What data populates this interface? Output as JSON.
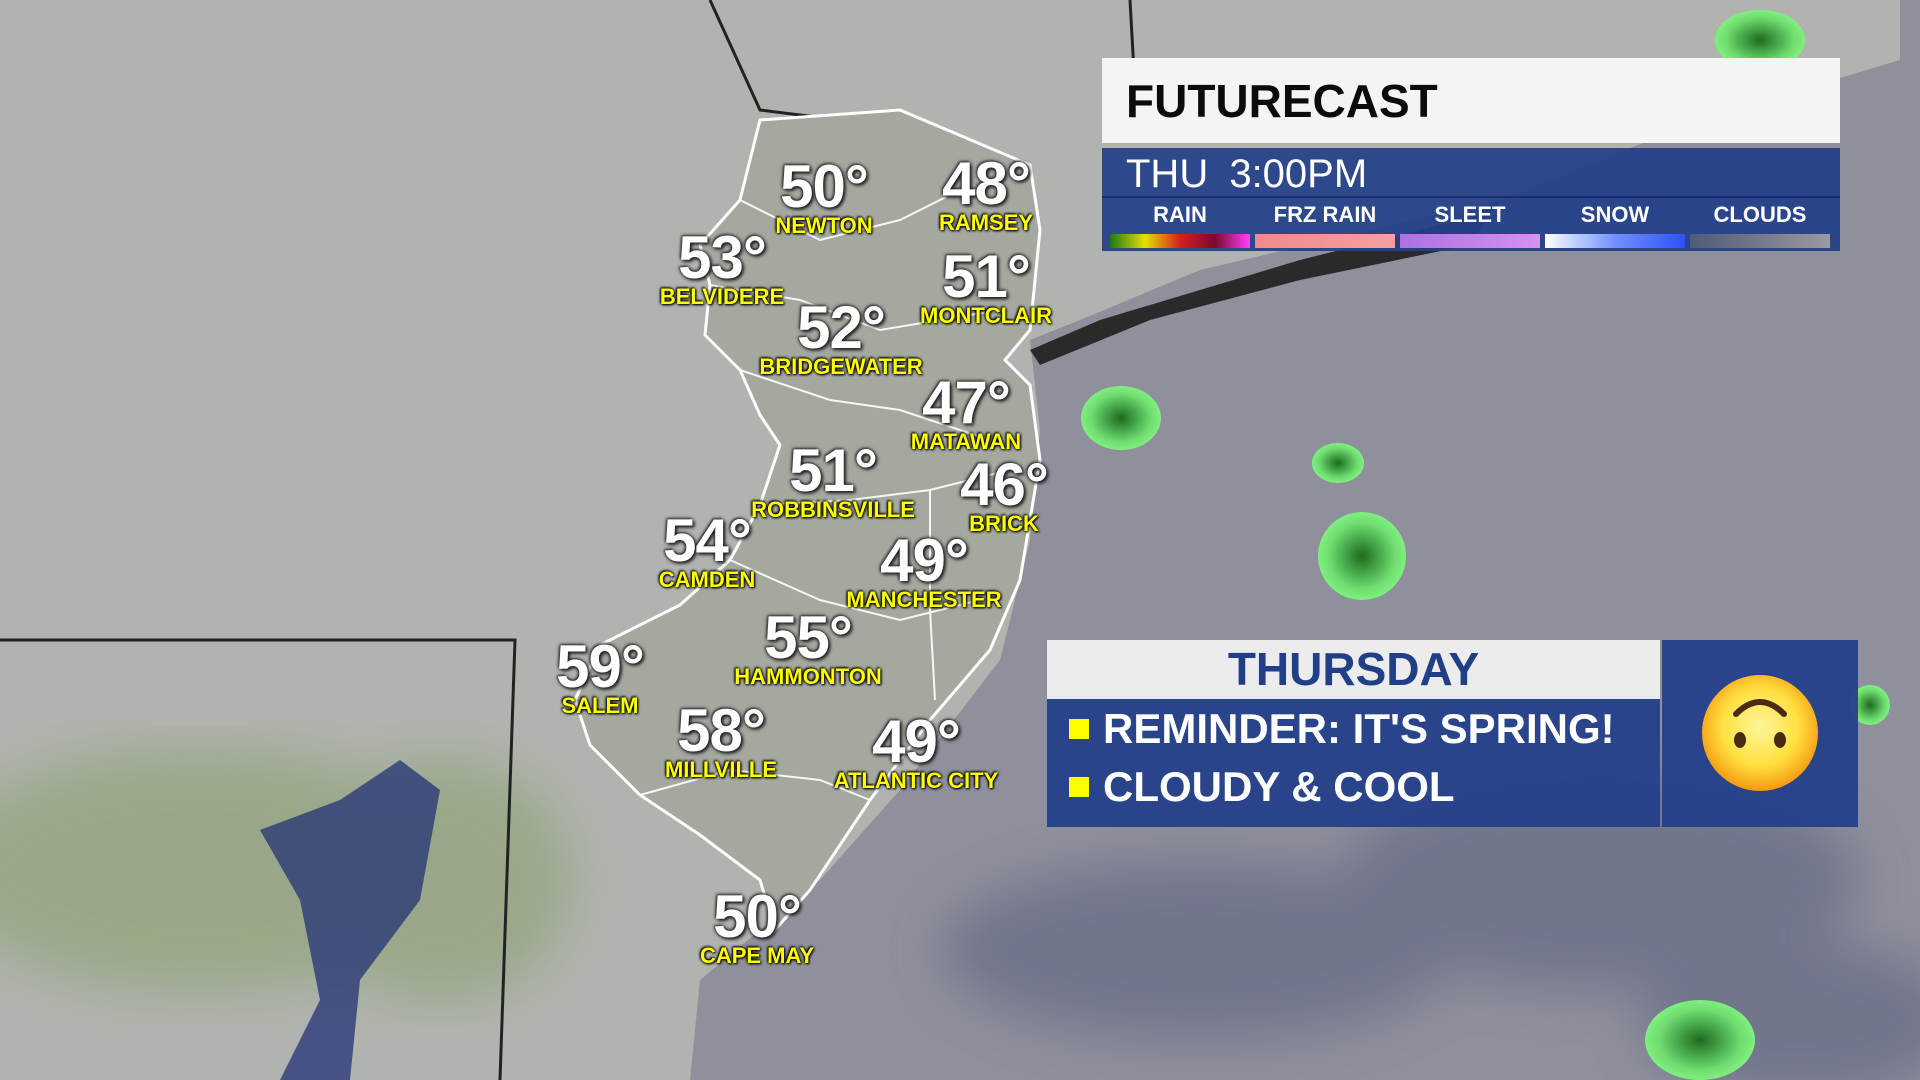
{
  "futurecast": {
    "title": "FUTURECAST",
    "time": "THU  3:00PM",
    "legend": [
      {
        "label": "RAIN",
        "gradient": "linear-gradient(90deg,#1a7a1a,#e8e000,#d42020,#7a0a2a,#ff40ff)"
      },
      {
        "label": "FRZ RAIN",
        "gradient": "linear-gradient(90deg,#f08a8a,#f4a0a0)"
      },
      {
        "label": "SLEET",
        "gradient": "linear-gradient(90deg,#b070e0,#d890f0)"
      },
      {
        "label": "SNOW",
        "gradient": "linear-gradient(90deg,#ffffff,#7090ff,#3050ff)"
      },
      {
        "label": "CLOUDS",
        "gradient": "linear-gradient(90deg,#505a78,#9a9aa0)"
      }
    ]
  },
  "cities": [
    {
      "temp": "50°",
      "name": "NEWTON"
    },
    {
      "temp": "48°",
      "name": "RAMSEY"
    },
    {
      "temp": "53°",
      "name": "BELVIDERE"
    },
    {
      "temp": "51°",
      "name": "MONTCLAIR"
    },
    {
      "temp": "52°",
      "name": "BRIDGEWATER"
    },
    {
      "temp": "47°",
      "name": "MATAWAN"
    },
    {
      "temp": "51°",
      "name": "ROBBINSVILLE"
    },
    {
      "temp": "46°",
      "name": "BRICK"
    },
    {
      "temp": "54°",
      "name": "CAMDEN"
    },
    {
      "temp": "49°",
      "name": "MANCHESTER"
    },
    {
      "temp": "55°",
      "name": "HAMMONTON"
    },
    {
      "temp": "59°",
      "name": "SALEM"
    },
    {
      "temp": "58°",
      "name": "MILLVILLE"
    },
    {
      "temp": "49°",
      "name": "ATLANTIC CITY"
    },
    {
      "temp": "50°",
      "name": "CAPE MAY"
    }
  ],
  "forecast": {
    "day": "THURSDAY",
    "bullets": [
      "REMINDER: IT'S SPRING!",
      "CLOUDY & COOL"
    ],
    "icon": "upside-down-face-icon"
  },
  "colors": {
    "panel_blue": "#24408a",
    "label_yellow": "#ffff00",
    "day_text": "#203f86"
  }
}
